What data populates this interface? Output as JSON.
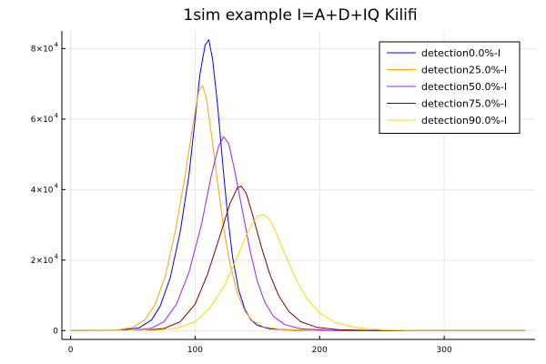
{
  "chart_data": {
    "type": "line",
    "title": "1sim example I=A+D+IQ Kilifi",
    "xlim": [
      -7,
      373
    ],
    "ylim": [
      -2500,
      85000
    ],
    "grid": true,
    "legend_placement": "top-right",
    "x_ticks": [
      {
        "value": 0,
        "label": "0"
      },
      {
        "value": 100,
        "label": "100"
      },
      {
        "value": 200,
        "label": "200"
      },
      {
        "value": 300,
        "label": "300"
      }
    ],
    "y_ticks": [
      {
        "value": 0,
        "label": "0",
        "exp": ""
      },
      {
        "value": 20000,
        "label": "2×10",
        "exp": "4"
      },
      {
        "value": 40000,
        "label": "4×10",
        "exp": "4"
      },
      {
        "value": 60000,
        "label": "6×10",
        "exp": "4"
      },
      {
        "value": 80000,
        "label": "8×10",
        "exp": "4"
      }
    ],
    "series": [
      {
        "name": "detection0.0%-I",
        "color": "#0000ff",
        "points": [
          [
            0,
            0
          ],
          [
            40,
            100
          ],
          [
            55,
            800
          ],
          [
            65,
            3000
          ],
          [
            72,
            7000
          ],
          [
            80,
            15000
          ],
          [
            88,
            28000
          ],
          [
            95,
            44000
          ],
          [
            100,
            60000
          ],
          [
            104,
            73000
          ],
          [
            108,
            81000
          ],
          [
            111,
            82500
          ],
          [
            114,
            77000
          ],
          [
            118,
            64000
          ],
          [
            122,
            48000
          ],
          [
            126,
            33000
          ],
          [
            130,
            21000
          ],
          [
            135,
            11500
          ],
          [
            140,
            6000
          ],
          [
            145,
            3000
          ],
          [
            150,
            1500
          ],
          [
            160,
            500
          ],
          [
            180,
            100
          ],
          [
            220,
            0
          ],
          [
            365,
            0
          ]
        ]
      },
      {
        "name": "detection25.0%-I",
        "color": "#ffa500",
        "points": [
          [
            0,
            0
          ],
          [
            35,
            100
          ],
          [
            50,
            900
          ],
          [
            60,
            3200
          ],
          [
            68,
            7500
          ],
          [
            76,
            15500
          ],
          [
            84,
            28000
          ],
          [
            92,
            44000
          ],
          [
            98,
            58000
          ],
          [
            103,
            68000
          ],
          [
            106,
            69500
          ],
          [
            109,
            66000
          ],
          [
            113,
            56000
          ],
          [
            118,
            42000
          ],
          [
            123,
            29000
          ],
          [
            128,
            19000
          ],
          [
            134,
            10500
          ],
          [
            140,
            5500
          ],
          [
            146,
            2800
          ],
          [
            155,
            1100
          ],
          [
            170,
            300
          ],
          [
            200,
            50
          ],
          [
            365,
            0
          ]
        ]
      },
      {
        "name": "detection50.0%-I",
        "color": "#a020f0",
        "points": [
          [
            0,
            0
          ],
          [
            50,
            100
          ],
          [
            65,
            700
          ],
          [
            75,
            2500
          ],
          [
            85,
            7500
          ],
          [
            95,
            16500
          ],
          [
            105,
            30000
          ],
          [
            113,
            44000
          ],
          [
            119,
            52500
          ],
          [
            123,
            55000
          ],
          [
            127,
            53000
          ],
          [
            132,
            45000
          ],
          [
            138,
            34000
          ],
          [
            144,
            23000
          ],
          [
            150,
            14000
          ],
          [
            156,
            8000
          ],
          [
            163,
            4000
          ],
          [
            172,
            1700
          ],
          [
            185,
            500
          ],
          [
            210,
            80
          ],
          [
            365,
            0
          ]
        ]
      },
      {
        "name": "detection75.0%-I",
        "color": "#800000",
        "points": [
          [
            0,
            0
          ],
          [
            60,
            100
          ],
          [
            75,
            600
          ],
          [
            88,
            2500
          ],
          [
            100,
            7500
          ],
          [
            110,
            16000
          ],
          [
            120,
            27000
          ],
          [
            128,
            36000
          ],
          [
            134,
            40500
          ],
          [
            137,
            41000
          ],
          [
            141,
            39000
          ],
          [
            146,
            33000
          ],
          [
            153,
            24000
          ],
          [
            160,
            16000
          ],
          [
            167,
            10000
          ],
          [
            175,
            5500
          ],
          [
            185,
            2500
          ],
          [
            198,
            900
          ],
          [
            215,
            250
          ],
          [
            240,
            50
          ],
          [
            365,
            0
          ]
        ]
      },
      {
        "name": "detection90.0%-I",
        "color": "#ffd700",
        "points": [
          [
            0,
            0
          ],
          [
            70,
            100
          ],
          [
            85,
            700
          ],
          [
            100,
            2500
          ],
          [
            112,
            6500
          ],
          [
            124,
            13000
          ],
          [
            134,
            21000
          ],
          [
            143,
            28500
          ],
          [
            150,
            32500
          ],
          [
            155,
            33000
          ],
          [
            160,
            31500
          ],
          [
            166,
            27000
          ],
          [
            173,
            21000
          ],
          [
            181,
            14500
          ],
          [
            190,
            9000
          ],
          [
            200,
            5000
          ],
          [
            212,
            2400
          ],
          [
            228,
            900
          ],
          [
            250,
            200
          ],
          [
            280,
            40
          ],
          [
            365,
            0
          ]
        ]
      }
    ]
  }
}
